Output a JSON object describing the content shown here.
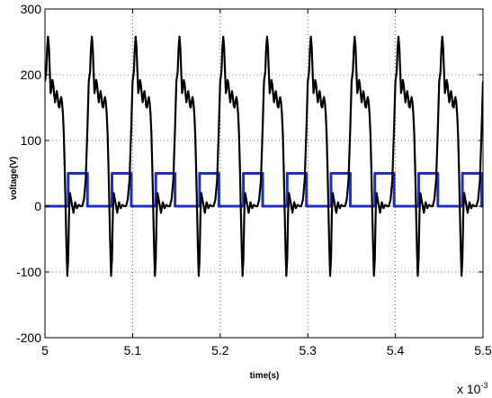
{
  "chart_data": {
    "type": "line",
    "title": "",
    "xlabel": "time(s)",
    "ylabel": "voltage(V)",
    "x_multiplier_label": "x 10",
    "x_multiplier_exponent": "-3",
    "xlim": [
      5.0,
      5.5
    ],
    "ylim": [
      -200,
      300
    ],
    "x_ticks": [
      5.0,
      5.1,
      5.2,
      5.3,
      5.4,
      5.5
    ],
    "x_tick_labels": [
      "5",
      "5.1",
      "5.2",
      "5.3",
      "5.4",
      "5.5"
    ],
    "y_ticks": [
      -200,
      -100,
      0,
      100,
      200,
      300
    ],
    "y_tick_labels": [
      "-200",
      "-100",
      "0",
      "100",
      "200",
      "300"
    ],
    "grid": true,
    "period": 0.05,
    "series": [
      {
        "color": "#000000",
        "style": "solid",
        "x": [
          5.0,
          5.0015,
          5.0025,
          5.0035,
          5.0045,
          5.0055,
          5.0065,
          5.0075,
          5.0085,
          5.0095,
          5.0105,
          5.0115,
          5.0125,
          5.0135,
          5.0145,
          5.0155,
          5.0165,
          5.0175,
          5.0185,
          5.0195,
          5.0205,
          5.0215,
          5.0225,
          5.0235,
          5.0245,
          5.0255,
          5.0265,
          5.0275,
          5.0285,
          5.0305,
          5.0325,
          5.0345,
          5.0365,
          5.0385,
          5.0405,
          5.0425,
          5.0445,
          5.0465,
          5.0485
        ],
        "values": [
          190,
          205,
          240,
          258,
          242,
          205,
          172,
          180,
          192,
          185,
          170,
          158,
          168,
          175,
          166,
          152,
          150,
          160,
          166,
          158,
          140,
          110,
          60,
          0,
          -60,
          -106,
          -80,
          -10,
          20,
          5,
          -10,
          6,
          -3,
          2,
          0,
          0,
          10,
          40,
          120
        ]
      },
      {
        "color": "#1f2fbf",
        "style": "square",
        "x": [
          5.0,
          5.0265,
          5.0265,
          5.0485,
          5.0485
        ],
        "values": [
          0,
          0,
          50,
          50,
          0
        ]
      }
    ]
  }
}
